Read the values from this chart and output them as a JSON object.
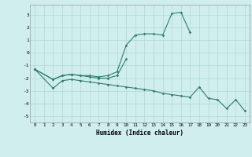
{
  "xlabel": "Humidex (Indice chaleur)",
  "x_values": [
    0,
    1,
    2,
    3,
    4,
    5,
    6,
    7,
    8,
    9,
    10,
    11,
    12,
    13,
    14,
    15,
    16,
    17,
    18,
    19,
    20,
    21,
    22,
    23
  ],
  "line1": [
    -1.3,
    null,
    -2.1,
    -1.8,
    -1.7,
    -1.8,
    -1.8,
    -1.9,
    -1.8,
    -1.5,
    0.6,
    1.4,
    1.5,
    1.5,
    1.4,
    3.1,
    3.2,
    1.6,
    null,
    null,
    null,
    null,
    null,
    null
  ],
  "line2": [
    -1.3,
    null,
    -2.1,
    -1.8,
    -1.7,
    -1.8,
    -1.9,
    -2.0,
    -2.0,
    -1.8,
    -0.5,
    null,
    null,
    null,
    null,
    null,
    null,
    null,
    null,
    null,
    null,
    null,
    null,
    null
  ],
  "line3": [
    -1.3,
    null,
    -2.8,
    -2.2,
    -2.1,
    -2.2,
    -2.3,
    -2.4,
    -2.5,
    -2.6,
    -2.7,
    -2.8,
    -2.9,
    -3.0,
    -3.2,
    -3.3,
    -3.4,
    -3.5,
    -2.7,
    -3.6,
    -3.7,
    -4.4,
    -3.7,
    -4.6
  ],
  "color": "#2e7d6e",
  "bg_color": "#d0eeee",
  "grid_color": "#b0d8d8",
  "ylim": [
    -5.5,
    3.8
  ],
  "xlim": [
    -0.5,
    23.5
  ],
  "yticks": [
    -5,
    -4,
    -3,
    -2,
    -1,
    0,
    1,
    2,
    3
  ],
  "xticks": [
    0,
    1,
    2,
    3,
    4,
    5,
    6,
    7,
    8,
    9,
    10,
    11,
    12,
    13,
    14,
    15,
    16,
    17,
    18,
    19,
    20,
    21,
    22,
    23
  ]
}
